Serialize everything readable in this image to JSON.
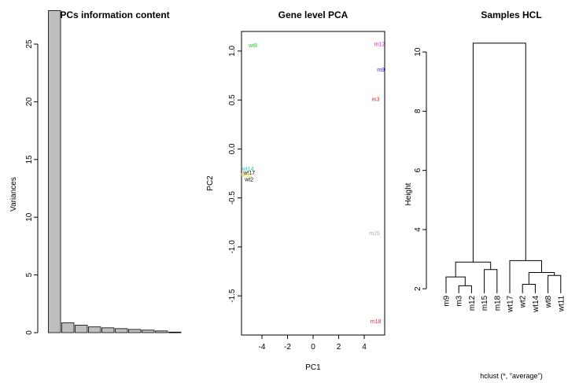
{
  "chart_data": [
    {
      "type": "bar",
      "title": "PCs information content",
      "xlabel": "",
      "ylabel": "Variances",
      "ylim": [
        0,
        28
      ],
      "yticks": [
        0,
        5,
        10,
        15,
        20,
        25
      ],
      "values": [
        27.9,
        0.85,
        0.65,
        0.5,
        0.42,
        0.35,
        0.28,
        0.22,
        0.15,
        0.05
      ],
      "bar_color": "#bebebe"
    },
    {
      "type": "scatter",
      "title": "Gene level PCA",
      "xlabel": "PC1",
      "ylabel": "PC2",
      "xlim": [
        -5.6,
        5.6
      ],
      "ylim": [
        -1.9,
        1.2
      ],
      "xticks": [
        -4,
        -2,
        0,
        2,
        4
      ],
      "yticks": [
        1.0,
        0.5,
        0.0,
        -0.5,
        -1.0,
        -1.5
      ],
      "points": [
        {
          "label": "wt8",
          "x": -4.7,
          "y": 1.06,
          "color": "#22cc22"
        },
        {
          "label": "m12",
          "x": 5.2,
          "y": 1.07,
          "color": "#cc22cc"
        },
        {
          "label": "m9",
          "x": 5.3,
          "y": 0.81,
          "color": "#2222ee"
        },
        {
          "label": "m3",
          "x": 4.9,
          "y": 0.51,
          "color": "#ee2222"
        },
        {
          "label": "wt14",
          "x": -5.1,
          "y": -0.2,
          "color": "#22cccc"
        },
        {
          "label": "wt17",
          "x": -5.0,
          "y": -0.24,
          "color": "#000000"
        },
        {
          "label": "wt11",
          "x": -5.2,
          "y": -0.26,
          "color": "#cccc00"
        },
        {
          "label": "wt2",
          "x": -5.0,
          "y": -0.31,
          "color": "#000000"
        },
        {
          "label": "m15",
          "x": 4.8,
          "y": -0.86,
          "color": "#aaaaaa"
        },
        {
          "label": "m18",
          "x": 4.9,
          "y": -1.76,
          "color": "#ee2222"
        }
      ]
    },
    {
      "type": "dendrogram",
      "title": "Samples HCL",
      "xlabel": "hclust (*, \"average\")",
      "ylabel": "Height",
      "ylim": [
        1.5,
        10.8
      ],
      "yticks": [
        2,
        4,
        6,
        8,
        10
      ],
      "leaves": [
        "m9",
        "m3",
        "m12",
        "m15",
        "m18",
        "wt17",
        "wt2",
        "wt14",
        "wt8",
        "wt11"
      ],
      "merges": [
        {
          "a": "L1",
          "b": "L2",
          "h": 2.1
        },
        {
          "a": "L0",
          "b": "M0",
          "h": 2.4
        },
        {
          "a": "L3",
          "b": "L4",
          "h": 2.65
        },
        {
          "a": "M1",
          "b": "M2",
          "h": 2.9
        },
        {
          "a": "L6",
          "b": "L7",
          "h": 2.15
        },
        {
          "a": "L8",
          "b": "L9",
          "h": 2.45
        },
        {
          "a": "M4",
          "b": "M5",
          "h": 2.55
        },
        {
          "a": "L5",
          "b": "M6",
          "h": 2.95
        },
        {
          "a": "M3",
          "b": "M7",
          "h": 10.3
        }
      ]
    }
  ]
}
